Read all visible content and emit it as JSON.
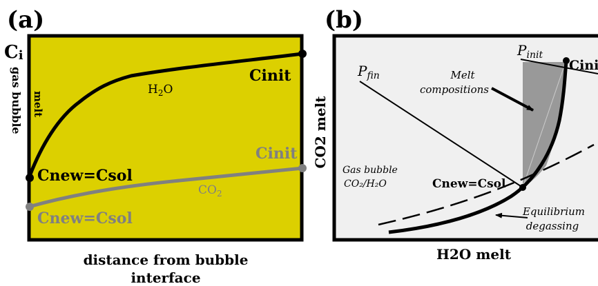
{
  "panel_a": {
    "label": "(a)",
    "y_label": "C",
    "y_label_sub": "i",
    "side_gas": "gas bubble",
    "side_melt": "melt",
    "x_label_line1": "distance from bubble",
    "x_label_line2": "interface",
    "h2o": {
      "label_main": "H",
      "label_sub": "2",
      "label_end": "O",
      "end_label": "Cinit",
      "start_label": "Cnew=Csol",
      "color": "#000000"
    },
    "co2": {
      "label_main": "CO",
      "label_sub": "2",
      "end_label": "Cinit",
      "start_label": "Cnew=Csol",
      "color": "#808080"
    },
    "bg_color": "#dcd000"
  },
  "panel_b": {
    "label": "(b)",
    "y_label": "CO2 melt",
    "x_label": "H2O melt",
    "p_init": "P",
    "p_init_sub": "init",
    "c_init": "Cinit",
    "p_fin": "P",
    "p_fin_sub": "fin",
    "melt_comp_1": "Melt",
    "melt_comp_2": "compositions",
    "c_new": "Cnew=Csol",
    "gas_1": "Gas bubble",
    "gas_2": "CO₂/H₂O",
    "eq_1": "Equilibrium",
    "eq_2": "degassing",
    "bg_color": "#f0f0f0",
    "shade_color": "#999999"
  }
}
